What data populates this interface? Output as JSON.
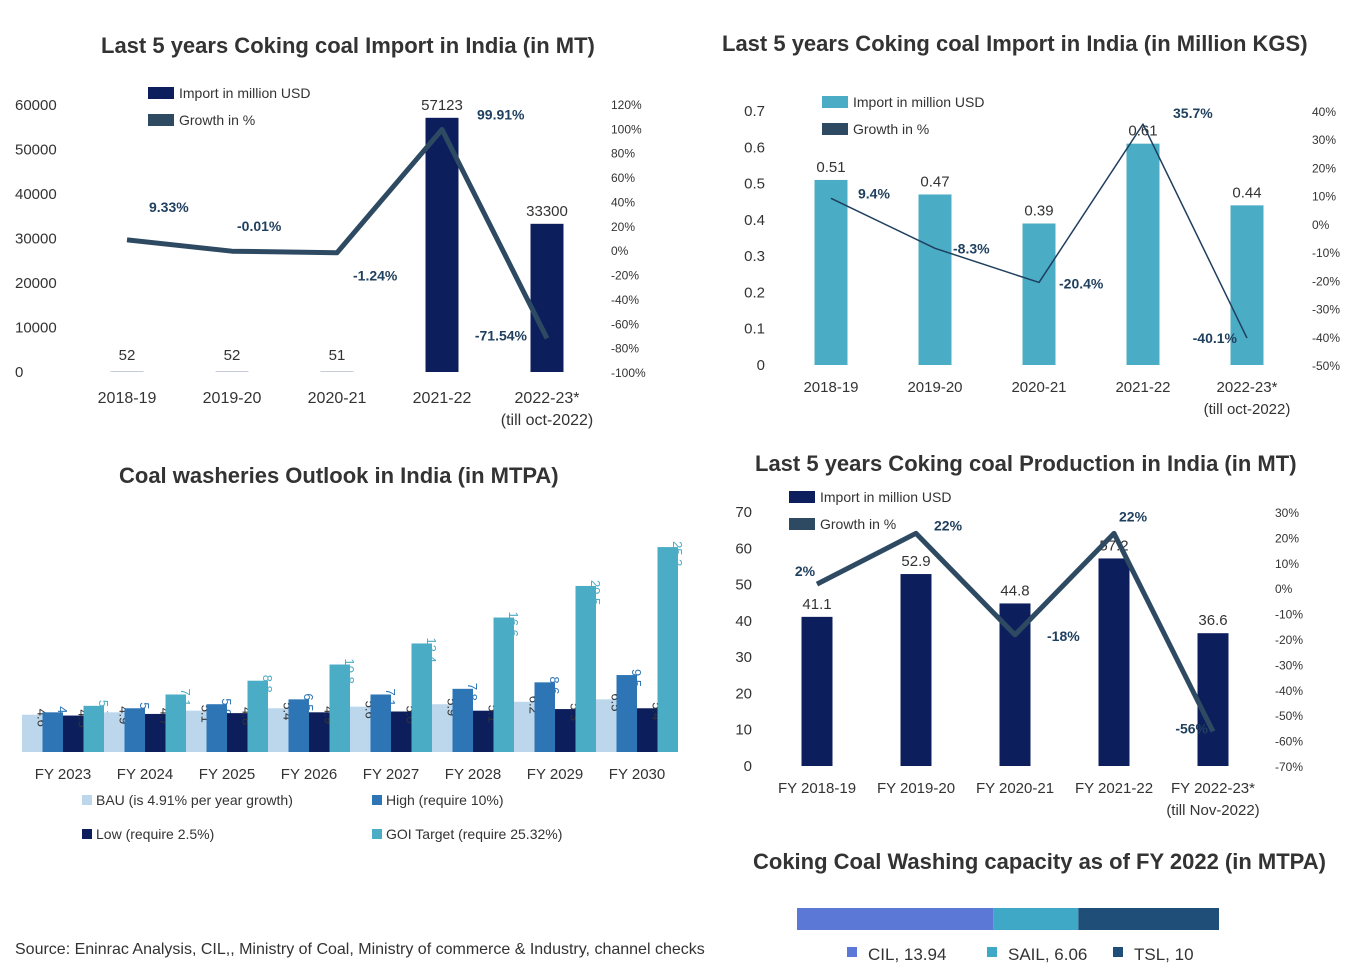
{
  "source": "Source: Eninrac Analysis, CIL,, Ministry of Coal, Ministry of commerce & Industry, channel checks",
  "colors": {
    "navy": "#0c1f5c",
    "teal": "#4bacc6",
    "line": "#2e4a62",
    "lineThin": "#1f3f5e",
    "bau": "#bcd7ec",
    "high": "#2e75b6",
    "low": "#0c1f5c",
    "goi": "#4bacc6",
    "cil": "#5b78d6",
    "sail": "#3fa8c6",
    "tsl": "#1f4e79"
  },
  "chart_data": [
    {
      "id": "import_mt",
      "type": "bar",
      "title": "Last 5 years Coking coal Import in India (in MT)",
      "categories": [
        "2018-19",
        "2019-20",
        "2020-21",
        "2021-22",
        "2022-23*"
      ],
      "category_sublabels": [
        "",
        "",
        "",
        "",
        "(till oct-2022)"
      ],
      "legend": [
        "Import in million USD",
        "Growth in  %"
      ],
      "series": [
        {
          "name": "Import in million USD",
          "values": [
            52,
            52,
            51,
            57123,
            33300
          ],
          "labels": [
            "52",
            "52",
            "51",
            "57123",
            "33300"
          ]
        },
        {
          "name": "Growth in  %",
          "type": "line",
          "axis": "right",
          "values": [
            9.33,
            -0.01,
            -1.24,
            99.91,
            -71.54
          ],
          "labels": [
            "9.33%",
            "-0.01%",
            "-1.24%",
            "99.91%",
            "-71.54%"
          ]
        }
      ],
      "yticks": [
        "0",
        "10000",
        "20000",
        "30000",
        "40000",
        "50000",
        "60000"
      ],
      "ylim": [
        0,
        60000
      ],
      "y2ticks": [
        "-100%",
        "-80%",
        "-60%",
        "-40%",
        "-20%",
        "0%",
        "20%",
        "40%",
        "60%",
        "80%",
        "100%",
        "120%"
      ],
      "y2lim": [
        -100,
        120
      ]
    },
    {
      "id": "import_kgs",
      "type": "bar",
      "title": "Last 5 years Coking coal Import in India (in Million KGS)",
      "categories": [
        "2018-19",
        "2019-20",
        "2020-21",
        "2021-22",
        "2022-23*"
      ],
      "category_sublabels": [
        "",
        "",
        "",
        "",
        "(till oct-2022)"
      ],
      "legend": [
        "Import in million USD",
        "Growth in %"
      ],
      "series": [
        {
          "name": "Import in million USD",
          "values": [
            0.51,
            0.47,
            0.39,
            0.61,
            0.44
          ],
          "labels": [
            "0.51",
            "0.47",
            "0.39",
            "0.61",
            "0.44"
          ]
        },
        {
          "name": "Growth in %",
          "type": "line",
          "axis": "right",
          "values": [
            9.4,
            -8.3,
            -20.4,
            35.7,
            -40.1
          ],
          "labels": [
            "9.4%",
            "-8.3%",
            "-20.4%",
            "35.7%",
            "-40.1%"
          ]
        }
      ],
      "yticks": [
        "0",
        "0.1",
        "0.2",
        "0.3",
        "0.4",
        "0.5",
        "0.6",
        "0.7"
      ],
      "ylim": [
        0,
        0.7
      ],
      "y2ticks": [
        "-50%",
        "-40%",
        "-30%",
        "-20%",
        "-10%",
        "0%",
        "10%",
        "20%",
        "30%",
        "40%"
      ],
      "y2lim": [
        -50,
        40
      ]
    },
    {
      "id": "washeries",
      "type": "bar",
      "title": "Coal washeries Outlook in India (in MTPA)",
      "categories": [
        "FY 2023",
        "FY 2024",
        "FY 2025",
        "FY 2026",
        "FY 2027",
        "FY 2028",
        "FY 2029",
        "FY 2030"
      ],
      "series": [
        {
          "name": "BAU (is 4.91% per year growth)",
          "values": [
            4.6,
            4.9,
            5.1,
            5.4,
            5.6,
            5.9,
            6.2,
            6.5
          ],
          "labels": [
            "4.6",
            "4.9",
            "5.1",
            "5.4",
            "5.6",
            "5.9",
            "6.2",
            "6.5"
          ]
        },
        {
          "name": "High (require 10%)",
          "values": [
            4.9,
            5.4,
            5.9,
            6.5,
            7.1,
            7.8,
            8.6,
            9.5
          ],
          "labels": [
            "4.9",
            "5.4",
            "5.9",
            "6.5",
            "7.1",
            "7.8",
            "8.6",
            "9.5"
          ]
        },
        {
          "name": "Low (require 2.5%)",
          "values": [
            4.5,
            4.7,
            4.8,
            4.9,
            5.0,
            5.1,
            5.3,
            5.4
          ],
          "labels": [
            "4.5",
            "4.7",
            "4.8",
            "4.9",
            "5.0",
            "5.1",
            "5.3",
            "5.4"
          ]
        },
        {
          "name": "GOI Target (require 25.32%)",
          "values": [
            5.7,
            7.1,
            8.8,
            10.8,
            13.4,
            16.6,
            20.5,
            25.3
          ],
          "labels": [
            "5.7",
            "7.1",
            "8.8",
            "10.8",
            "13.4",
            "16.6",
            "20.5",
            "25.3"
          ]
        }
      ],
      "ylim": [
        0,
        25.3
      ]
    },
    {
      "id": "production",
      "type": "bar",
      "title": "Last 5 years Coking coal Production in India (in MT)",
      "categories": [
        "FY 2018-19",
        "FY 2019-20",
        "FY 2020-21",
        "FY 2021-22",
        "FY 2022-23*"
      ],
      "category_sublabels": [
        "",
        "",
        "",
        "",
        "(till Nov-2022)"
      ],
      "legend": [
        "Import in million USD",
        "Growth in  %"
      ],
      "series": [
        {
          "name": "Import in million USD",
          "values": [
            41.1,
            52.9,
            44.8,
            57.2,
            36.6
          ],
          "labels": [
            "41.1",
            "52.9",
            "44.8",
            "57.2",
            "36.6"
          ]
        },
        {
          "name": "Growth in  %",
          "type": "line",
          "axis": "right",
          "values": [
            2,
            22,
            -18,
            22,
            -56
          ],
          "labels": [
            "2%",
            "22%",
            "-18%",
            "22%",
            "-56%"
          ]
        }
      ],
      "yticks": [
        "0",
        "10",
        "20",
        "30",
        "40",
        "50",
        "60",
        "70"
      ],
      "ylim": [
        0,
        70
      ],
      "y2ticks": [
        "-70%",
        "-60%",
        "-50%",
        "-40%",
        "-30%",
        "-20%",
        "-10%",
        "0%",
        "10%",
        "20%",
        "30%"
      ],
      "y2lim": [
        -70,
        30
      ]
    },
    {
      "id": "washing_capacity",
      "type": "bar",
      "title": "Coking Coal Washing capacity as of  FY 2022 (in MTPA)",
      "stacked": true,
      "orientation": "horizontal",
      "series": [
        {
          "name": "CIL",
          "value": 13.94,
          "label": "CIL, 13.94"
        },
        {
          "name": "SAIL",
          "value": 6.06,
          "label": "SAIL, 6.06"
        },
        {
          "name": "TSL",
          "value": 10,
          "label": "TSL, 10"
        }
      ]
    }
  ]
}
